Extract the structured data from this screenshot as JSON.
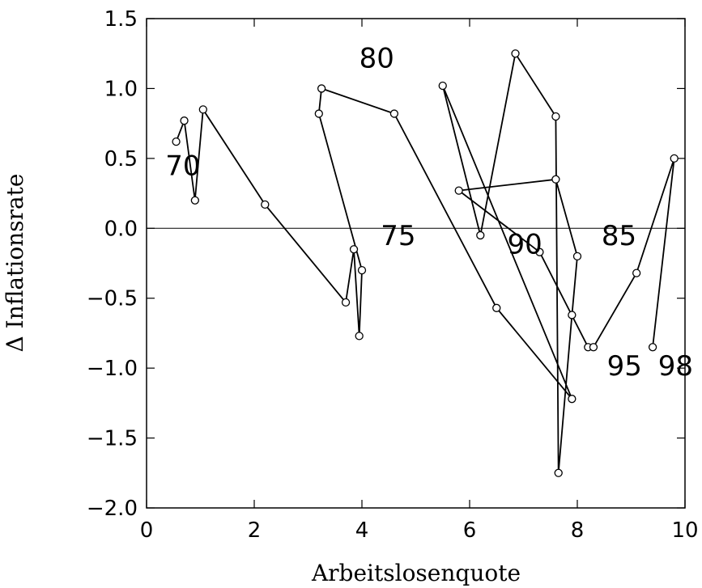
{
  "chart_data": {
    "type": "line",
    "xlabel": "Arbeitslosenquote",
    "ylabel": "Δ Inflationsrate",
    "xlim": [
      0,
      10
    ],
    "ylim": [
      -2.0,
      1.5
    ],
    "xticks": [
      0,
      2,
      4,
      6,
      8,
      10
    ],
    "yticks": [
      1.5,
      1.0,
      0.5,
      0.0,
      -0.5,
      -1.0,
      -1.5,
      -2.0
    ],
    "xtick_labels": [
      "0",
      "2",
      "4",
      "6",
      "8",
      "10"
    ],
    "ytick_labels": [
      "1.5",
      "1.0",
      "0.5",
      "0.0",
      "−0.5",
      "−1.0",
      "−1.5",
      "−2.0"
    ],
    "grid": false,
    "zero_line": true,
    "points": [
      {
        "x": 0.55,
        "y": 0.62
      },
      {
        "x": 0.7,
        "y": 0.77
      },
      {
        "x": 0.9,
        "y": 0.2
      },
      {
        "x": 1.05,
        "y": 0.85
      },
      {
        "x": 2.2,
        "y": 0.17
      },
      {
        "x": 3.7,
        "y": -0.53
      },
      {
        "x": 3.85,
        "y": -0.15
      },
      {
        "x": 3.95,
        "y": -0.77
      },
      {
        "x": 4.0,
        "y": -0.3
      },
      {
        "x": 3.2,
        "y": 0.82
      },
      {
        "x": 3.25,
        "y": 1.0
      },
      {
        "x": 4.6,
        "y": 0.82
      },
      {
        "x": 6.5,
        "y": -0.57
      },
      {
        "x": 7.9,
        "y": -1.22
      },
      {
        "x": 5.5,
        "y": 1.02
      },
      {
        "x": 6.2,
        "y": -0.05
      },
      {
        "x": 6.85,
        "y": 1.25
      },
      {
        "x": 7.6,
        "y": 0.8
      },
      {
        "x": 7.65,
        "y": -1.75
      },
      {
        "x": 7.9,
        "y": -0.62
      },
      {
        "x": 8.0,
        "y": -0.2
      },
      {
        "x": 7.6,
        "y": 0.35
      },
      {
        "x": 5.8,
        "y": 0.27
      },
      {
        "x": 7.3,
        "y": -0.17
      },
      {
        "x": 8.2,
        "y": -0.85
      },
      {
        "x": 8.3,
        "y": -0.85
      },
      {
        "x": 9.1,
        "y": -0.32
      },
      {
        "x": 9.8,
        "y": 0.5
      },
      {
        "x": 9.4,
        "y": -0.85
      }
    ],
    "year_labels": [
      {
        "text": "70",
        "x": 0.35,
        "y": 0.38
      },
      {
        "text": "75",
        "x": 4.35,
        "y": -0.12
      },
      {
        "text": "80",
        "x": 3.95,
        "y": 1.15
      },
      {
        "text": "85",
        "x": 8.45,
        "y": -0.12
      },
      {
        "text": "90",
        "x": 6.7,
        "y": -0.18
      },
      {
        "text": "95",
        "x": 8.55,
        "y": -1.05
      },
      {
        "text": "98",
        "x": 9.5,
        "y": -1.05
      }
    ]
  }
}
